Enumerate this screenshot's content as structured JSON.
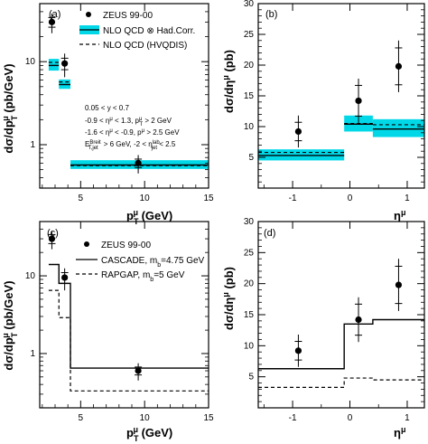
{
  "colors": {
    "band": "#00d8e8",
    "line": "#000000",
    "frame": "#000000"
  },
  "panels": [
    {
      "id": "a",
      "label": "(a)",
      "xlabel": "p",
      "xlabel_sub": "T",
      "xlabel_sup": "μ",
      "xlabel_unit": " (GeV)",
      "ylabel": "dσ/dp",
      "ylabel_sub": "T",
      "ylabel_sup": "μ",
      "ylabel_unit": " (pb/GeV)",
      "xticks": [
        "5",
        "10",
        "15"
      ],
      "yticks": [
        "1",
        "10"
      ],
      "legend": [
        {
          "marker": "dot",
          "text": "ZEUS 99-00"
        },
        {
          "marker": "band",
          "text": "NLO QCD ⊗ Had.Corr."
        },
        {
          "marker": "dashed",
          "text": "NLO QCD (HVQDIS)"
        }
      ],
      "cuts": [
        "0.05 < y < 0.7",
        "-0.9 < η",
        "-1.6 < η",
        "E",
        "> 6 GeV, -2 < η"
      ]
    },
    {
      "id": "b",
      "label": "(b)",
      "xlabel": "η",
      "xlabel_sup": "μ",
      "ylabel": "dσ/dη",
      "ylabel_sup": "μ",
      "ylabel_unit": " (pb)",
      "xticks": [
        "-1",
        "0",
        "1"
      ],
      "yticks": [
        "5",
        "10",
        "15",
        "20",
        "25",
        "30"
      ]
    },
    {
      "id": "c",
      "label": "(c)",
      "xlabel": "p",
      "xlabel_sub": "T",
      "xlabel_sup": "μ",
      "xlabel_unit": " (GeV)",
      "ylabel": "dσ/dp",
      "ylabel_sub": "T",
      "ylabel_sup": "μ",
      "ylabel_unit": " (pb/GeV)",
      "xticks": [
        "5",
        "10",
        "15"
      ],
      "yticks": [
        "1",
        "10"
      ],
      "legend": [
        {
          "marker": "dot",
          "text": "ZEUS 99-00"
        },
        {
          "marker": "solid",
          "text": "CASCADE, m"
        },
        {
          "marker": "dashed",
          "text": "RAPGAP, m"
        }
      ]
    },
    {
      "id": "d",
      "label": "(d)",
      "xlabel": "η",
      "xlabel_sup": "μ",
      "ylabel": "dσ/dη",
      "ylabel_sup": "μ",
      "ylabel_unit": " (pb)",
      "xticks": [
        "-1",
        "0",
        "1"
      ],
      "yticks": [
        "5",
        "10",
        "15",
        "20",
        "25",
        "30"
      ]
    }
  ],
  "chart_data": [
    {
      "panel": "a",
      "type": "scatter",
      "xlim": [
        1.8,
        15
      ],
      "ylim": [
        0.3,
        50
      ],
      "ylog": true,
      "data": {
        "name": "ZEUS 99-00",
        "x": [
          2.75,
          3.75,
          9.5
        ],
        "y": [
          30,
          9.5,
          0.6
        ],
        "stat": [
          4,
          1.5,
          0.07
        ],
        "total": [
          8,
          3,
          0.15
        ]
      },
      "bins": [
        [
          2.5,
          3.3
        ],
        [
          3.3,
          4.2
        ],
        [
          4.2,
          15
        ]
      ],
      "nlo_central": [
        9.0,
        5.3,
        0.57
      ],
      "nlo_band": [
        [
          7.8,
          10.8
        ],
        [
          4.7,
          6.1
        ],
        [
          0.51,
          0.65
        ]
      ],
      "hvqdis": [
        9.8,
        5.7,
        0.56
      ]
    },
    {
      "panel": "b",
      "type": "scatter",
      "xlim": [
        -1.6,
        1.3
      ],
      "ylim": [
        0,
        30
      ],
      "data": {
        "name": "ZEUS 99-00",
        "x": [
          -0.9,
          0.15,
          0.85
        ],
        "y": [
          9.2,
          14.2,
          19.8
        ],
        "stat": [
          1.5,
          2.5,
          3.0
        ],
        "total": [
          2.6,
          3.6,
          4.2
        ]
      },
      "bins": [
        [
          -1.6,
          -0.1
        ],
        [
          -0.1,
          0.4
        ],
        [
          0.4,
          1.3
        ]
      ],
      "nlo_central": [
        5.3,
        10.4,
        9.6
      ],
      "nlo_band": [
        [
          4.5,
          6.3
        ],
        [
          9.2,
          11.8
        ],
        [
          8.3,
          11.2
        ]
      ],
      "hvqdis": [
        5.8,
        10.5,
        10.3
      ]
    },
    {
      "panel": "c",
      "type": "scatter",
      "xlim": [
        1.8,
        15
      ],
      "ylim": [
        0.2,
        50
      ],
      "ylog": true,
      "data": {
        "name": "ZEUS 99-00",
        "x": [
          2.75,
          3.75,
          9.5
        ],
        "y": [
          30,
          9.5,
          0.6
        ],
        "stat": [
          4,
          1.5,
          0.07
        ],
        "total": [
          8,
          3,
          0.15
        ]
      },
      "bins": [
        [
          2.5,
          3.3
        ],
        [
          3.3,
          4.2
        ],
        [
          4.2,
          15
        ]
      ],
      "cascade": [
        14,
        8,
        0.65
      ],
      "rapgap": [
        6.5,
        2.9,
        0.33
      ]
    },
    {
      "panel": "d",
      "type": "scatter",
      "xlim": [
        -1.6,
        1.3
      ],
      "ylim": [
        0,
        30
      ],
      "data": {
        "name": "ZEUS 99-00",
        "x": [
          -0.9,
          0.15,
          0.85
        ],
        "y": [
          9.2,
          14.2,
          19.8
        ],
        "stat": [
          1.5,
          2.5,
          3.0
        ],
        "total": [
          2.6,
          3.6,
          4.2
        ]
      },
      "bins": [
        [
          -1.6,
          -0.1
        ],
        [
          -0.1,
          0.4
        ],
        [
          0.4,
          1.3
        ]
      ],
      "cascade": [
        6.3,
        13.5,
        14.2
      ],
      "rapgap": [
        3.3,
        4.8,
        4.5
      ]
    }
  ]
}
